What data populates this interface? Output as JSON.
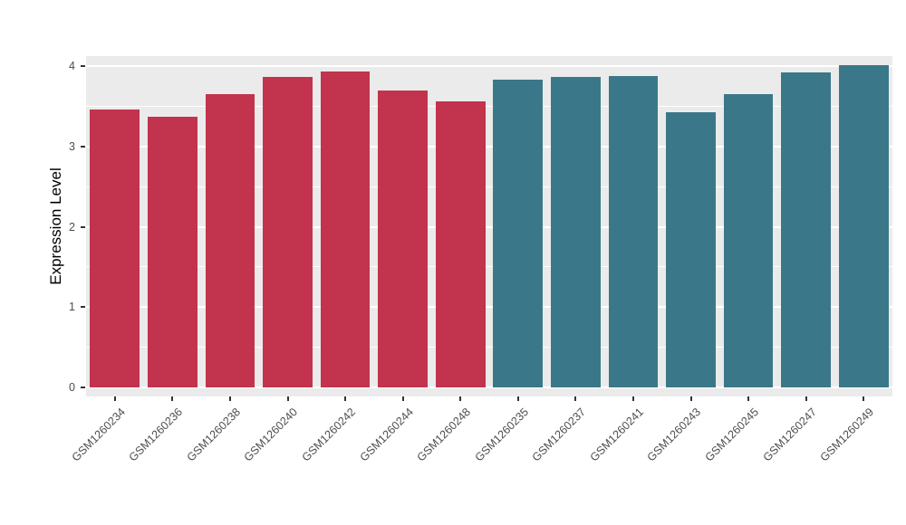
{
  "chart_data": {
    "type": "bar",
    "title": "",
    "xlabel": "",
    "ylabel": "Expression Level",
    "categories": [
      "GSM1260234",
      "GSM1260236",
      "GSM1260238",
      "GSM1260240",
      "GSM1260242",
      "GSM1260244",
      "GSM1260248",
      "GSM1260235",
      "GSM1260237",
      "GSM1260241",
      "GSM1260243",
      "GSM1260245",
      "GSM1260247",
      "GSM1260249"
    ],
    "values": [
      3.46,
      3.37,
      3.65,
      3.87,
      3.93,
      3.7,
      3.56,
      3.83,
      3.86,
      3.88,
      3.42,
      3.65,
      3.92,
      4.01
    ],
    "groups": [
      "red",
      "red",
      "red",
      "red",
      "red",
      "red",
      "red",
      "teal",
      "teal",
      "teal",
      "teal",
      "teal",
      "teal",
      "teal"
    ],
    "group_colors": {
      "red": "#C2334D",
      "teal": "#3A7889"
    },
    "ylim": [
      0,
      4.12
    ],
    "yticks": [
      "0",
      "1",
      "2",
      "3",
      "4"
    ],
    "grid": "on",
    "legend": "none",
    "panel_bg": "#EBEBEB",
    "grid_color": "#FFFFFF",
    "axis_text_color": "#4D4D4D"
  }
}
